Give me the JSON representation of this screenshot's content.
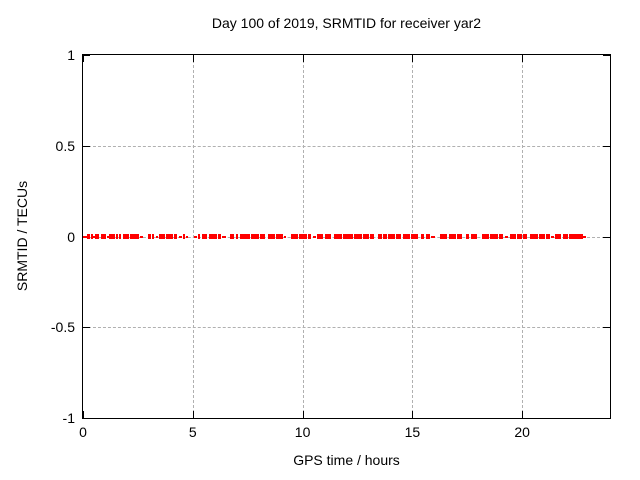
{
  "chart_data": {
    "type": "scatter",
    "title": "Day 100 of 2019, SRMTID for receiver yar2",
    "xlabel": "GPS time / hours",
    "ylabel": "SRMTID / TECUs",
    "xlim": [
      0,
      24
    ],
    "ylim": [
      -1,
      1
    ],
    "xticks": [
      0,
      5,
      10,
      15,
      20
    ],
    "xtick_labels": [
      "0",
      "5",
      "10",
      "15",
      "20"
    ],
    "yticks": [
      -1,
      -0.5,
      0,
      0.5,
      1
    ],
    "ytick_labels": [
      "-1",
      "-0.5",
      "0",
      "0.5",
      "1"
    ],
    "grid": true,
    "grid_ticks_x": [
      5,
      10,
      15,
      20
    ],
    "grid_ticks_y": [
      -0.5,
      0,
      0.5
    ],
    "legend": "none",
    "series": [
      {
        "name": "SRMTID",
        "marker": "filled-square",
        "color": "#ff0000",
        "y": 0,
        "x_segments_hours": [
          [
            0.0,
            0.18,
            "t"
          ],
          [
            0.18,
            0.3,
            "p"
          ],
          [
            0.35,
            0.42,
            "p"
          ],
          [
            0.45,
            0.52,
            "t"
          ],
          [
            0.55,
            0.75,
            "p"
          ],
          [
            0.8,
            0.88,
            "p"
          ],
          [
            0.93,
            1.05,
            "p"
          ],
          [
            1.1,
            1.16,
            "t"
          ],
          [
            1.2,
            1.45,
            "p"
          ],
          [
            1.5,
            1.56,
            "p"
          ],
          [
            1.65,
            1.72,
            "p"
          ],
          [
            1.8,
            2.1,
            "p"
          ],
          [
            2.13,
            2.35,
            "p"
          ],
          [
            2.38,
            2.55,
            "p"
          ],
          [
            2.58,
            2.72,
            "t"
          ],
          [
            2.95,
            3.1,
            "p"
          ],
          [
            3.15,
            3.22,
            "p"
          ],
          [
            3.3,
            3.38,
            "t"
          ],
          [
            3.45,
            3.75,
            "p"
          ],
          [
            3.8,
            4.1,
            "p"
          ],
          [
            4.15,
            4.28,
            "p"
          ],
          [
            4.35,
            4.5,
            "t"
          ],
          [
            4.55,
            4.62,
            "p"
          ],
          [
            4.7,
            4.8,
            "t"
          ],
          [
            5.05,
            5.18,
            "t"
          ],
          [
            5.22,
            5.35,
            "p"
          ],
          [
            5.4,
            5.65,
            "p"
          ],
          [
            5.72,
            6.1,
            "p"
          ],
          [
            6.15,
            6.3,
            "p"
          ],
          [
            6.35,
            6.5,
            "t"
          ],
          [
            6.7,
            6.9,
            "p"
          ],
          [
            6.95,
            7.05,
            "p"
          ],
          [
            7.15,
            7.6,
            "p"
          ],
          [
            7.65,
            8.0,
            "p"
          ],
          [
            8.05,
            8.3,
            "p"
          ],
          [
            8.4,
            8.75,
            "p"
          ],
          [
            8.8,
            9.1,
            "p"
          ],
          [
            9.15,
            9.25,
            "t"
          ],
          [
            9.45,
            9.8,
            "p"
          ],
          [
            9.85,
            10.2,
            "p"
          ],
          [
            10.25,
            10.4,
            "p"
          ],
          [
            10.45,
            10.6,
            "t"
          ],
          [
            10.65,
            10.95,
            "p"
          ],
          [
            11.0,
            11.3,
            "p"
          ],
          [
            11.45,
            11.8,
            "p"
          ],
          [
            11.85,
            12.3,
            "p"
          ],
          [
            12.35,
            12.7,
            "p"
          ],
          [
            12.75,
            13.0,
            "p"
          ],
          [
            13.05,
            13.25,
            "p"
          ],
          [
            13.45,
            13.6,
            "p"
          ],
          [
            13.65,
            13.85,
            "p"
          ],
          [
            13.9,
            14.2,
            "p"
          ],
          [
            14.25,
            14.5,
            "p"
          ],
          [
            14.55,
            14.9,
            "p"
          ],
          [
            14.95,
            15.25,
            "p"
          ],
          [
            15.4,
            15.55,
            "p"
          ],
          [
            15.6,
            15.8,
            "p"
          ],
          [
            15.85,
            16.05,
            "t"
          ],
          [
            16.25,
            16.6,
            "p"
          ],
          [
            16.65,
            17.0,
            "p"
          ],
          [
            17.05,
            17.25,
            "p"
          ],
          [
            17.45,
            17.6,
            "p"
          ],
          [
            17.65,
            17.95,
            "p"
          ],
          [
            18.15,
            18.5,
            "p"
          ],
          [
            18.55,
            18.9,
            "p"
          ],
          [
            18.95,
            19.15,
            "p"
          ],
          [
            19.2,
            19.35,
            "t"
          ],
          [
            19.45,
            19.7,
            "p"
          ],
          [
            19.75,
            20.0,
            "p"
          ],
          [
            20.05,
            20.2,
            "p"
          ],
          [
            20.35,
            20.7,
            "p"
          ],
          [
            20.75,
            21.05,
            "p"
          ],
          [
            21.1,
            21.25,
            "p"
          ],
          [
            21.3,
            21.45,
            "t"
          ],
          [
            21.5,
            21.75,
            "p"
          ],
          [
            21.85,
            22.1,
            "p"
          ],
          [
            22.15,
            22.75,
            "p"
          ],
          [
            22.78,
            22.9,
            "t"
          ]
        ]
      }
    ]
  },
  "colors": {
    "marker": "#ff0000",
    "grid": "#b0b0b0",
    "axis": "#000000",
    "background": "#ffffff"
  }
}
